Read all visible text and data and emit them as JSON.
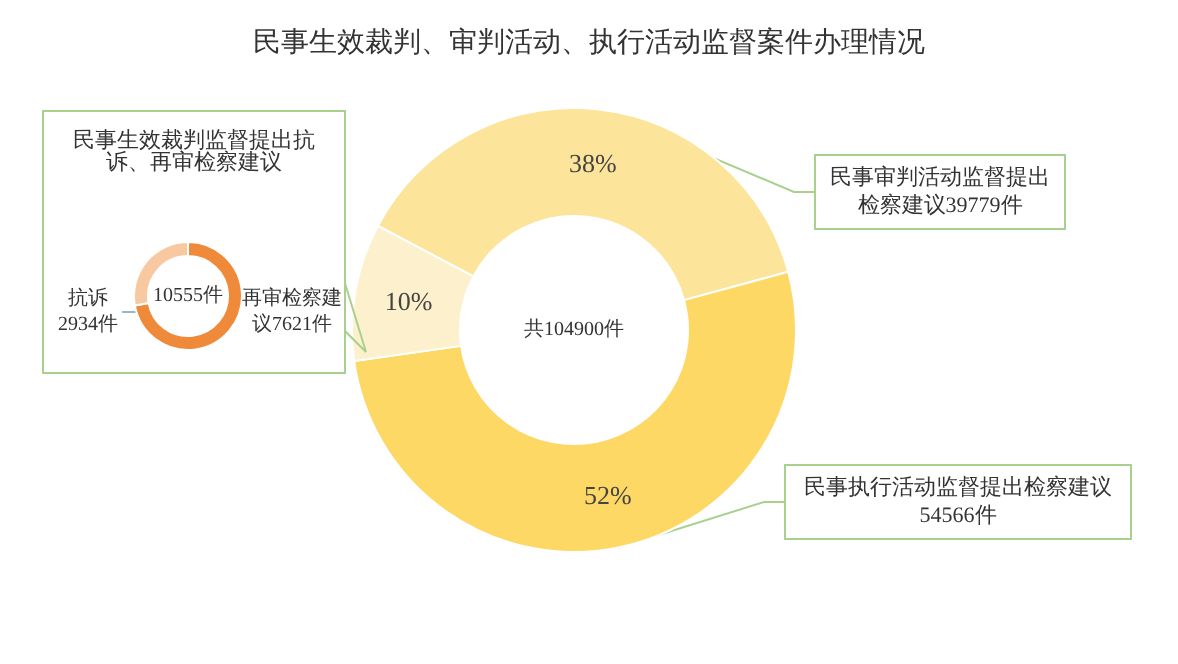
{
  "chart_data": [
    {
      "type": "donut",
      "title": "民事生效裁判、审判活动、执行活动监督案件办理情况",
      "categories": [
        "民事审判活动监督提出检察建议39779件",
        "民事执行活动监督提出检察建议54566件",
        null
      ],
      "values": [
        38,
        52,
        10
      ],
      "colors": [
        "#fde49b",
        "#fdd865",
        "#fdf0cc"
      ],
      "value_labels": [
        "38%",
        "52%",
        "10%"
      ],
      "annotations": [
        "共104900件"
      ]
    },
    {
      "type": "donut",
      "title": "民事生效裁判监督提出抗诉、再审检察建议",
      "categories": [
        "再审检察建议7621件",
        "抗诉2934件"
      ],
      "values": [
        7621,
        2934
      ],
      "colors": [
        "#ee8a3a",
        "#f8c9a0"
      ],
      "annotations": [
        "10555件"
      ]
    }
  ]
}
